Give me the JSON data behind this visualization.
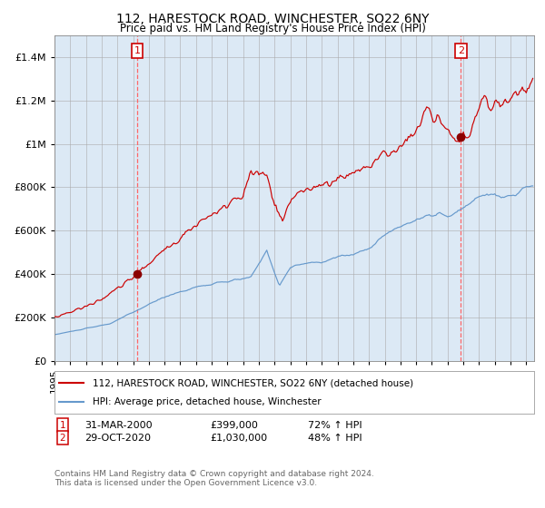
{
  "title": "112, HARESTOCK ROAD, WINCHESTER, SO22 6NY",
  "subtitle": "Price paid vs. HM Land Registry's House Price Index (HPI)",
  "background_color": "#dce9f5",
  "fig_bg_color": "#ffffff",
  "red_line_color": "#cc0000",
  "blue_line_color": "#6699cc",
  "red_dot_color": "#8b0000",
  "sale1_year": 2000.25,
  "sale1_price": 399000,
  "sale2_year": 2020.83,
  "sale2_price": 1030000,
  "vline_color": "#ff6666",
  "annotation_box_color": "#cc0000",
  "ylim_max": 1500000,
  "ylim_min": 0,
  "xlim_min": 1995,
  "xlim_max": 2025.5,
  "legend_red_label": "112, HARESTOCK ROAD, WINCHESTER, SO22 6NY (detached house)",
  "legend_blue_label": "HPI: Average price, detached house, Winchester",
  "note1_label": "1",
  "note2_label": "2",
  "note1_date": "31-MAR-2000",
  "note1_price": "£399,000",
  "note1_hpi": "72% ↑ HPI",
  "note2_date": "29-OCT-2020",
  "note2_price": "£1,030,000",
  "note2_hpi": "48% ↑ HPI",
  "footer": "Contains HM Land Registry data © Crown copyright and database right 2024.\nThis data is licensed under the Open Government Licence v3.0."
}
